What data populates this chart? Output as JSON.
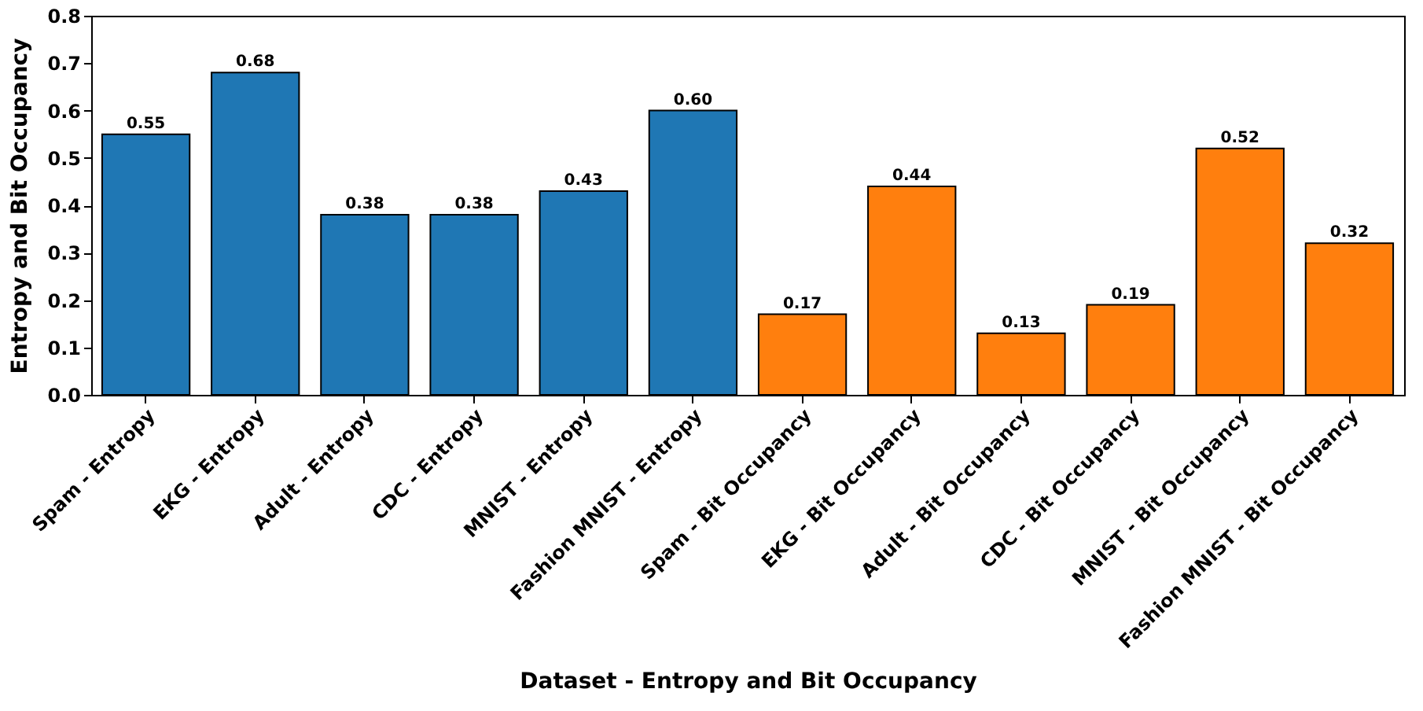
{
  "chart_data": {
    "type": "bar",
    "xlabel": "Dataset - Entropy and Bit Occupancy",
    "ylabel": "Entropy and Bit Occupancy",
    "categories": [
      "Spam - Entropy",
      "EKG - Entropy",
      "Adult - Entropy",
      "CDC - Entropy",
      "MNIST - Entropy",
      "Fashion MNIST - Entropy",
      "Spam - Bit Occupancy",
      "EKG - Bit Occupancy",
      "Adult - Bit Occupancy",
      "CDC - Bit Occupancy",
      "MNIST - Bit Occupancy",
      "Fashion MNIST - Bit Occupancy"
    ],
    "values": [
      0.55,
      0.68,
      0.38,
      0.38,
      0.43,
      0.6,
      0.17,
      0.44,
      0.13,
      0.19,
      0.52,
      0.32
    ],
    "value_labels": [
      "0.55",
      "0.68",
      "0.38",
      "0.38",
      "0.43",
      "0.60",
      "0.17",
      "0.44",
      "0.13",
      "0.19",
      "0.52",
      "0.32"
    ],
    "colors": [
      "#1f77b4",
      "#1f77b4",
      "#1f77b4",
      "#1f77b4",
      "#1f77b4",
      "#1f77b4",
      "#ff7f0e",
      "#ff7f0e",
      "#ff7f0e",
      "#ff7f0e",
      "#ff7f0e",
      "#ff7f0e"
    ],
    "ylim": [
      0,
      0.8
    ],
    "yticks": [
      {
        "value": 0,
        "label": "0.0"
      },
      {
        "value": 0.1,
        "label": "0.1"
      },
      {
        "value": 0.2,
        "label": "0.2"
      },
      {
        "value": 0.3,
        "label": "0.3"
      },
      {
        "value": 0.4,
        "label": "0.4"
      },
      {
        "value": 0.5,
        "label": "0.5"
      },
      {
        "value": 0.6,
        "label": "0.6"
      },
      {
        "value": 0.7,
        "label": "0.7"
      },
      {
        "value": 0.8,
        "label": "0.8"
      }
    ],
    "grid": false,
    "legend": false
  }
}
